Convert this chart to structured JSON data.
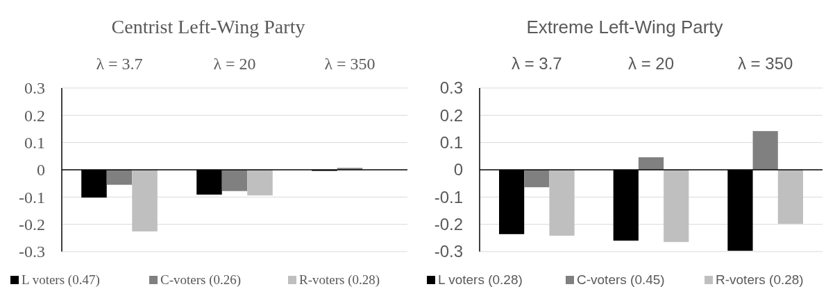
{
  "chart_data": [
    {
      "type": "bar",
      "title": "Centrist Left-Wing Party",
      "categories": [
        "λ = 3.7",
        "λ = 20",
        "λ = 350"
      ],
      "series": [
        {
          "name": "L voters (0.47)",
          "color": "#000000",
          "values": [
            -0.102,
            -0.091,
            -0.004
          ]
        },
        {
          "name": "C-voters (0.26)",
          "color": "#808080",
          "values": [
            -0.055,
            -0.078,
            0.007
          ]
        },
        {
          "name": "R-voters (0.28)",
          "color": "#bfbfbf",
          "values": [
            -0.226,
            -0.094,
            0
          ]
        }
      ],
      "ylim": [
        -0.3,
        0.3
      ],
      "yticks": [
        -0.3,
        -0.2,
        -0.1,
        0,
        0.1,
        0.2,
        0.3
      ],
      "grid": "y",
      "legend": "bottom"
    },
    {
      "type": "bar",
      "title": "Extreme Left-Wing Party",
      "categories": [
        "λ = 3.7",
        "λ = 20",
        "λ = 350"
      ],
      "series": [
        {
          "name": "L voters (0.28)",
          "color": "#000000",
          "values": [
            -0.236,
            -0.26,
            -0.297
          ]
        },
        {
          "name": "C-voters (0.45)",
          "color": "#808080",
          "values": [
            -0.064,
            0.046,
            0.142
          ]
        },
        {
          "name": "R-voters (0.28)",
          "color": "#bfbfbf",
          "values": [
            -0.242,
            -0.265,
            -0.198
          ]
        }
      ],
      "ylim": [
        -0.3,
        0.3
      ],
      "yticks": [
        -0.3,
        -0.2,
        -0.1,
        0,
        0.1,
        0.2,
        0.3
      ],
      "grid": "y",
      "legend": "bottom"
    }
  ]
}
